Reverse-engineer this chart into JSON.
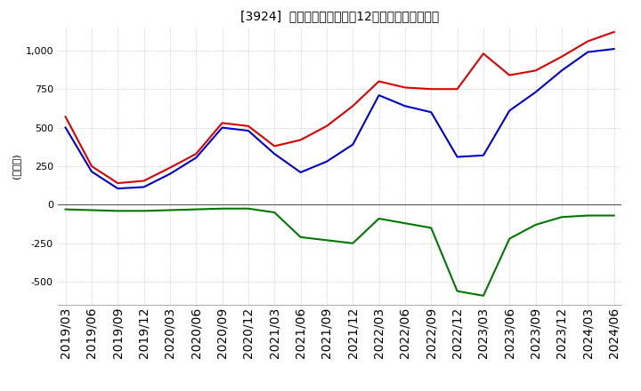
{
  "title": "[3924]  キャッシュフローの12か月移動合計の推移",
  "ylabel": "(百万円)",
  "background_color": "#ffffff",
  "grid_color": "#aaaaaa",
  "dates": [
    "2019/03",
    "2019/06",
    "2019/09",
    "2019/12",
    "2020/03",
    "2020/06",
    "2020/09",
    "2020/12",
    "2021/03",
    "2021/06",
    "2021/09",
    "2021/12",
    "2022/03",
    "2022/06",
    "2022/09",
    "2022/12",
    "2023/03",
    "2023/06",
    "2023/09",
    "2023/12",
    "2024/03",
    "2024/06"
  ],
  "eigyo_cf": [
    570,
    250,
    140,
    155,
    240,
    330,
    530,
    510,
    380,
    420,
    510,
    640,
    800,
    760,
    750,
    750,
    980,
    840,
    870,
    960,
    1060,
    1120
  ],
  "toshi_cf": [
    -30,
    -35,
    -40,
    -40,
    -35,
    -30,
    -25,
    -25,
    -50,
    -210,
    -230,
    -250,
    -90,
    -120,
    -150,
    -560,
    -590,
    -220,
    -130,
    -80,
    -70,
    -70
  ],
  "free_cf": [
    500,
    215,
    105,
    115,
    200,
    305,
    500,
    480,
    330,
    210,
    280,
    390,
    710,
    640,
    600,
    310,
    320,
    610,
    730,
    870,
    990,
    1010
  ],
  "eigyo_color": "#dd0000",
  "toshi_color": "#007700",
  "free_color": "#0000cc",
  "ylim": [
    -650,
    1150
  ],
  "yticks": [
    -500,
    -250,
    0,
    250,
    500,
    750,
    1000
  ]
}
